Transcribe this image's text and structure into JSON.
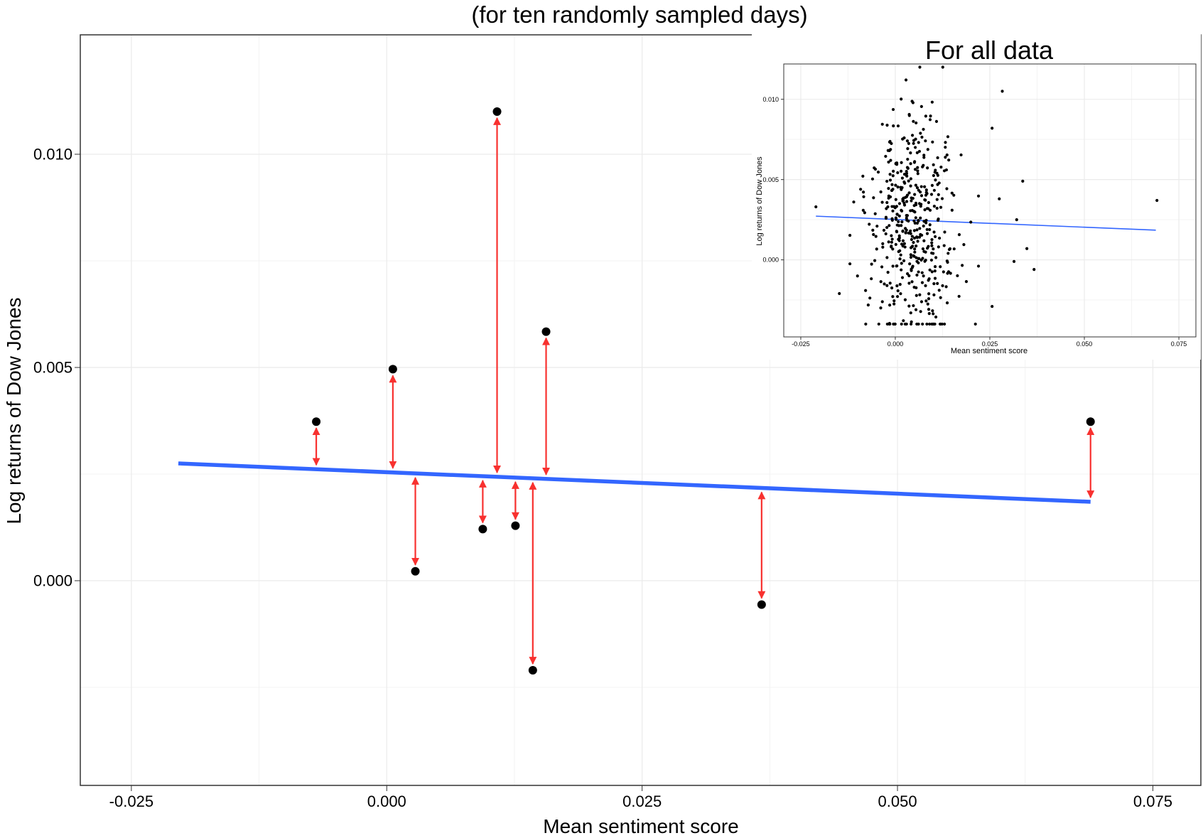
{
  "chart_data": [
    {
      "type": "scatter",
      "title": "(for ten randomly sampled days)",
      "xlabel": "Mean sentiment score",
      "ylabel": "Log returns of Dow Jones",
      "xlim": [
        -0.03,
        0.0797
      ],
      "ylim": [
        -0.0048,
        0.0128
      ],
      "xticks": [
        -0.025,
        0.0,
        0.025,
        0.05,
        0.075
      ],
      "xtick_labels": [
        "-0.025",
        "0.000",
        "0.025",
        "0.050",
        "0.075"
      ],
      "yticks": [
        0.0,
        0.005,
        0.01
      ],
      "ytick_labels": [
        "0.000",
        "0.005",
        "0.010"
      ],
      "grid": true,
      "points": [
        {
          "x": -0.0069,
          "y": 0.00373
        },
        {
          "x": 0.0006,
          "y": 0.00496
        },
        {
          "x": 0.0028,
          "y": 0.00022
        },
        {
          "x": 0.0094,
          "y": 0.00121
        },
        {
          "x": 0.0108,
          "y": 0.011
        },
        {
          "x": 0.0126,
          "y": 0.00129
        },
        {
          "x": 0.0143,
          "y": -0.0021
        },
        {
          "x": 0.0156,
          "y": 0.00584
        },
        {
          "x": 0.0367,
          "y": -0.00056
        },
        {
          "x": 0.0689,
          "y": 0.00373
        }
      ],
      "regression_line": {
        "x": [
          -0.0204,
          0.0689
        ],
        "y": [
          0.00275,
          0.00185
        ]
      },
      "residual_arrows": true,
      "colors": {
        "points": "#000000",
        "line": "#3366ff",
        "residuals": "#f8312f",
        "grid": "#ebebeb"
      }
    },
    {
      "type": "scatter",
      "title": "For all data",
      "xlabel": "Mean sentiment score",
      "ylabel": "Log returns of Dow Jones",
      "xlim": [
        -0.0295,
        0.0795
      ],
      "ylim": [
        -0.0048,
        0.0122
      ],
      "xticks": [
        -0.025,
        0.0,
        0.025,
        0.05,
        0.075
      ],
      "xtick_labels": [
        "-0.025",
        "0.000",
        "0.025",
        "0.050",
        "0.075"
      ],
      "yticks": [
        0.0,
        0.005,
        0.01
      ],
      "ytick_labels": [
        "0.000",
        "0.005",
        "0.010"
      ],
      "grid": true,
      "points_description": "approx. 480 daily observations clustered around x = 0 to 0.015, y = -0.004 to 0.012",
      "outliers": [
        {
          "x": -0.021,
          "y": 0.0033
        },
        {
          "x": -0.0148,
          "y": -0.0021
        },
        {
          "x": 0.0692,
          "y": 0.0037
        },
        {
          "x": 0.0337,
          "y": 0.0049
        },
        {
          "x": 0.0321,
          "y": 0.0025
        },
        {
          "x": 0.0348,
          "y": 0.0007
        },
        {
          "x": 0.0314,
          "y": -0.0001
        },
        {
          "x": 0.0367,
          "y": -0.0006
        },
        {
          "x": 0.0283,
          "y": 0.0105
        },
        {
          "x": 0.0256,
          "y": -0.0029
        },
        {
          "x": 0.0256,
          "y": 0.0082
        },
        {
          "x": 0.0275,
          "y": 0.0038
        }
      ],
      "regression_line": {
        "x": [
          -0.021,
          0.0689
        ],
        "y": [
          0.00272,
          0.00185
        ]
      },
      "colors": {
        "points": "#000000",
        "line": "#3366ff",
        "grid": "#ebebeb"
      }
    }
  ]
}
